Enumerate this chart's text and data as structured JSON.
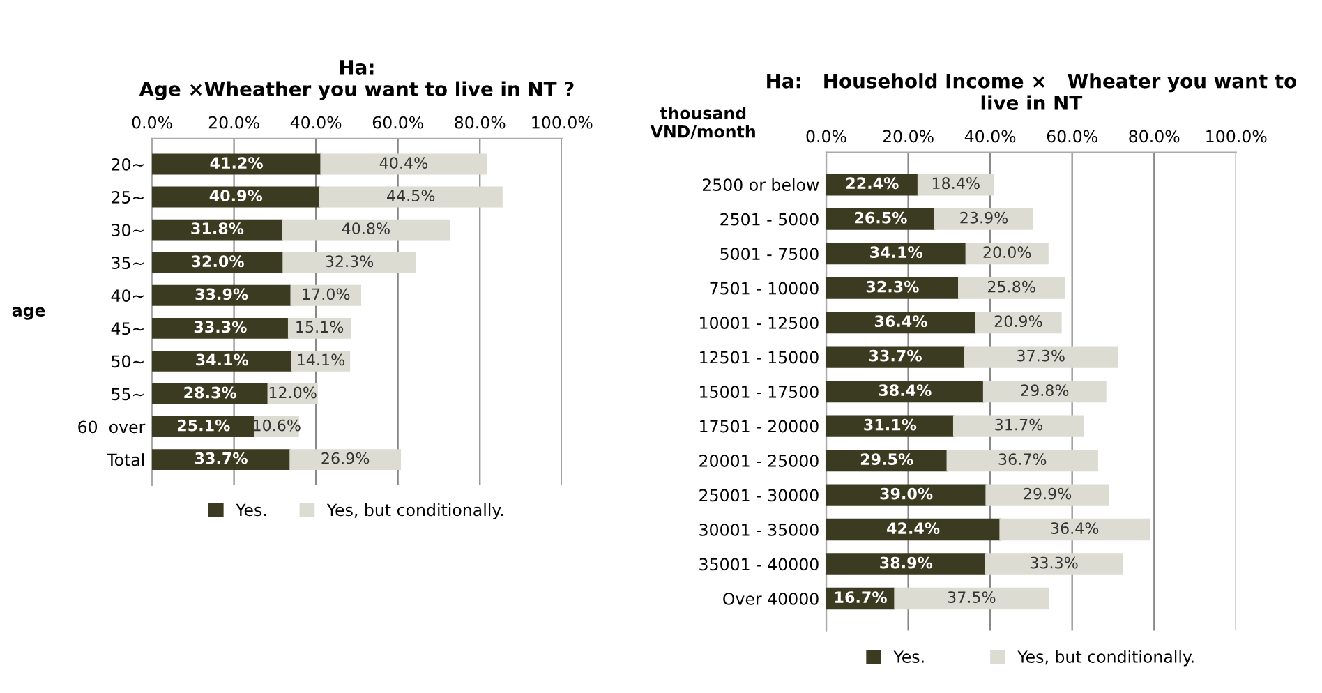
{
  "chart_data": [
    {
      "type": "bar",
      "orientation": "horizontal",
      "stacked": true,
      "title": "Ha:\nAge ×Wheather you want to live in NT ?",
      "ylabel": "age",
      "categories": [
        "20~",
        "25~",
        "30~",
        "35~",
        "40~",
        "45~",
        "50~",
        "55~",
        "60  over",
        "Total"
      ],
      "series": [
        {
          "name": "Yes.",
          "color": "#3b3b22",
          "values": [
            41.2,
            40.9,
            31.8,
            32.0,
            33.9,
            33.3,
            34.1,
            28.3,
            25.1,
            33.7
          ],
          "value_labels": [
            "41.2%",
            "40.9%",
            "31.8%",
            "32.0%",
            "33.9%",
            "33.3%",
            "34.1%",
            "28.3%",
            "25.1%",
            "33.7%"
          ]
        },
        {
          "name": "Yes, but conditionally.",
          "color": "#dcdcd2",
          "values": [
            40.4,
            44.5,
            40.8,
            32.3,
            17.0,
            15.1,
            14.1,
            12.0,
            10.6,
            26.9
          ],
          "value_labels": [
            "40.4%",
            "44.5%",
            "40.8%",
            "32.3%",
            "17.0%",
            "15.1%",
            "14.1%",
            "12.0%",
            "10.6%",
            "26.9%"
          ]
        }
      ],
      "xlim": [
        0,
        100
      ],
      "xticks": [
        {
          "value": 0,
          "label": "0.0%"
        },
        {
          "value": 20,
          "label": "20.0%"
        },
        {
          "value": 40,
          "label": "40.0%"
        },
        {
          "value": 60,
          "label": "60.0%"
        },
        {
          "value": 80,
          "label": "80.0%"
        },
        {
          "value": 100,
          "label": "100.0%"
        }
      ],
      "grid": "x",
      "legend": "bottom"
    },
    {
      "type": "bar",
      "orientation": "horizontal",
      "stacked": true,
      "title": "Ha:   Household Income ×   Wheater you want to\nlive in NT",
      "ylabel": "thousand\nVND/month",
      "categories": [
        "2500 or below",
        "2501 - 5000",
        "5001 - 7500",
        "7501 - 10000",
        "10001 - 12500",
        "12501 - 15000",
        "15001 - 17500",
        "17501 - 20000",
        "20001 - 25000",
        "25001 - 30000",
        "30001 - 35000",
        "35001 - 40000",
        "Over 40000"
      ],
      "series": [
        {
          "name": "Yes.",
          "color": "#3b3b22",
          "values": [
            22.4,
            26.5,
            34.1,
            32.3,
            36.4,
            33.7,
            38.4,
            31.1,
            29.5,
            39.0,
            42.4,
            38.9,
            16.7
          ],
          "value_labels": [
            "22.4%",
            "26.5%",
            "34.1%",
            "32.3%",
            "36.4%",
            "33.7%",
            "38.4%",
            "31.1%",
            "29.5%",
            "39.0%",
            "42.4%",
            "38.9%",
            "16.7%"
          ]
        },
        {
          "name": "Yes, but conditionally.",
          "color": "#dcdcd2",
          "values": [
            18.4,
            23.9,
            20.0,
            25.8,
            20.9,
            37.3,
            29.8,
            31.7,
            36.7,
            29.9,
            36.4,
            33.3,
            37.5
          ],
          "value_labels": [
            "18.4%",
            "23.9%",
            "20.0%",
            "25.8%",
            "20.9%",
            "37.3%",
            "29.8%",
            "31.7%",
            "36.7%",
            "29.9%",
            "36.4%",
            "33.3%",
            "37.5%"
          ]
        }
      ],
      "xlim": [
        0,
        100
      ],
      "xticks": [
        {
          "value": 0,
          "label": "0.0%"
        },
        {
          "value": 20,
          "label": "20.0%"
        },
        {
          "value": 40,
          "label": "40.0%"
        },
        {
          "value": 60,
          "label": "60.0%"
        },
        {
          "value": 80,
          "label": "80.0%"
        },
        {
          "value": 100,
          "label": "100.0%"
        }
      ],
      "grid": "x",
      "legend": "bottom"
    }
  ]
}
